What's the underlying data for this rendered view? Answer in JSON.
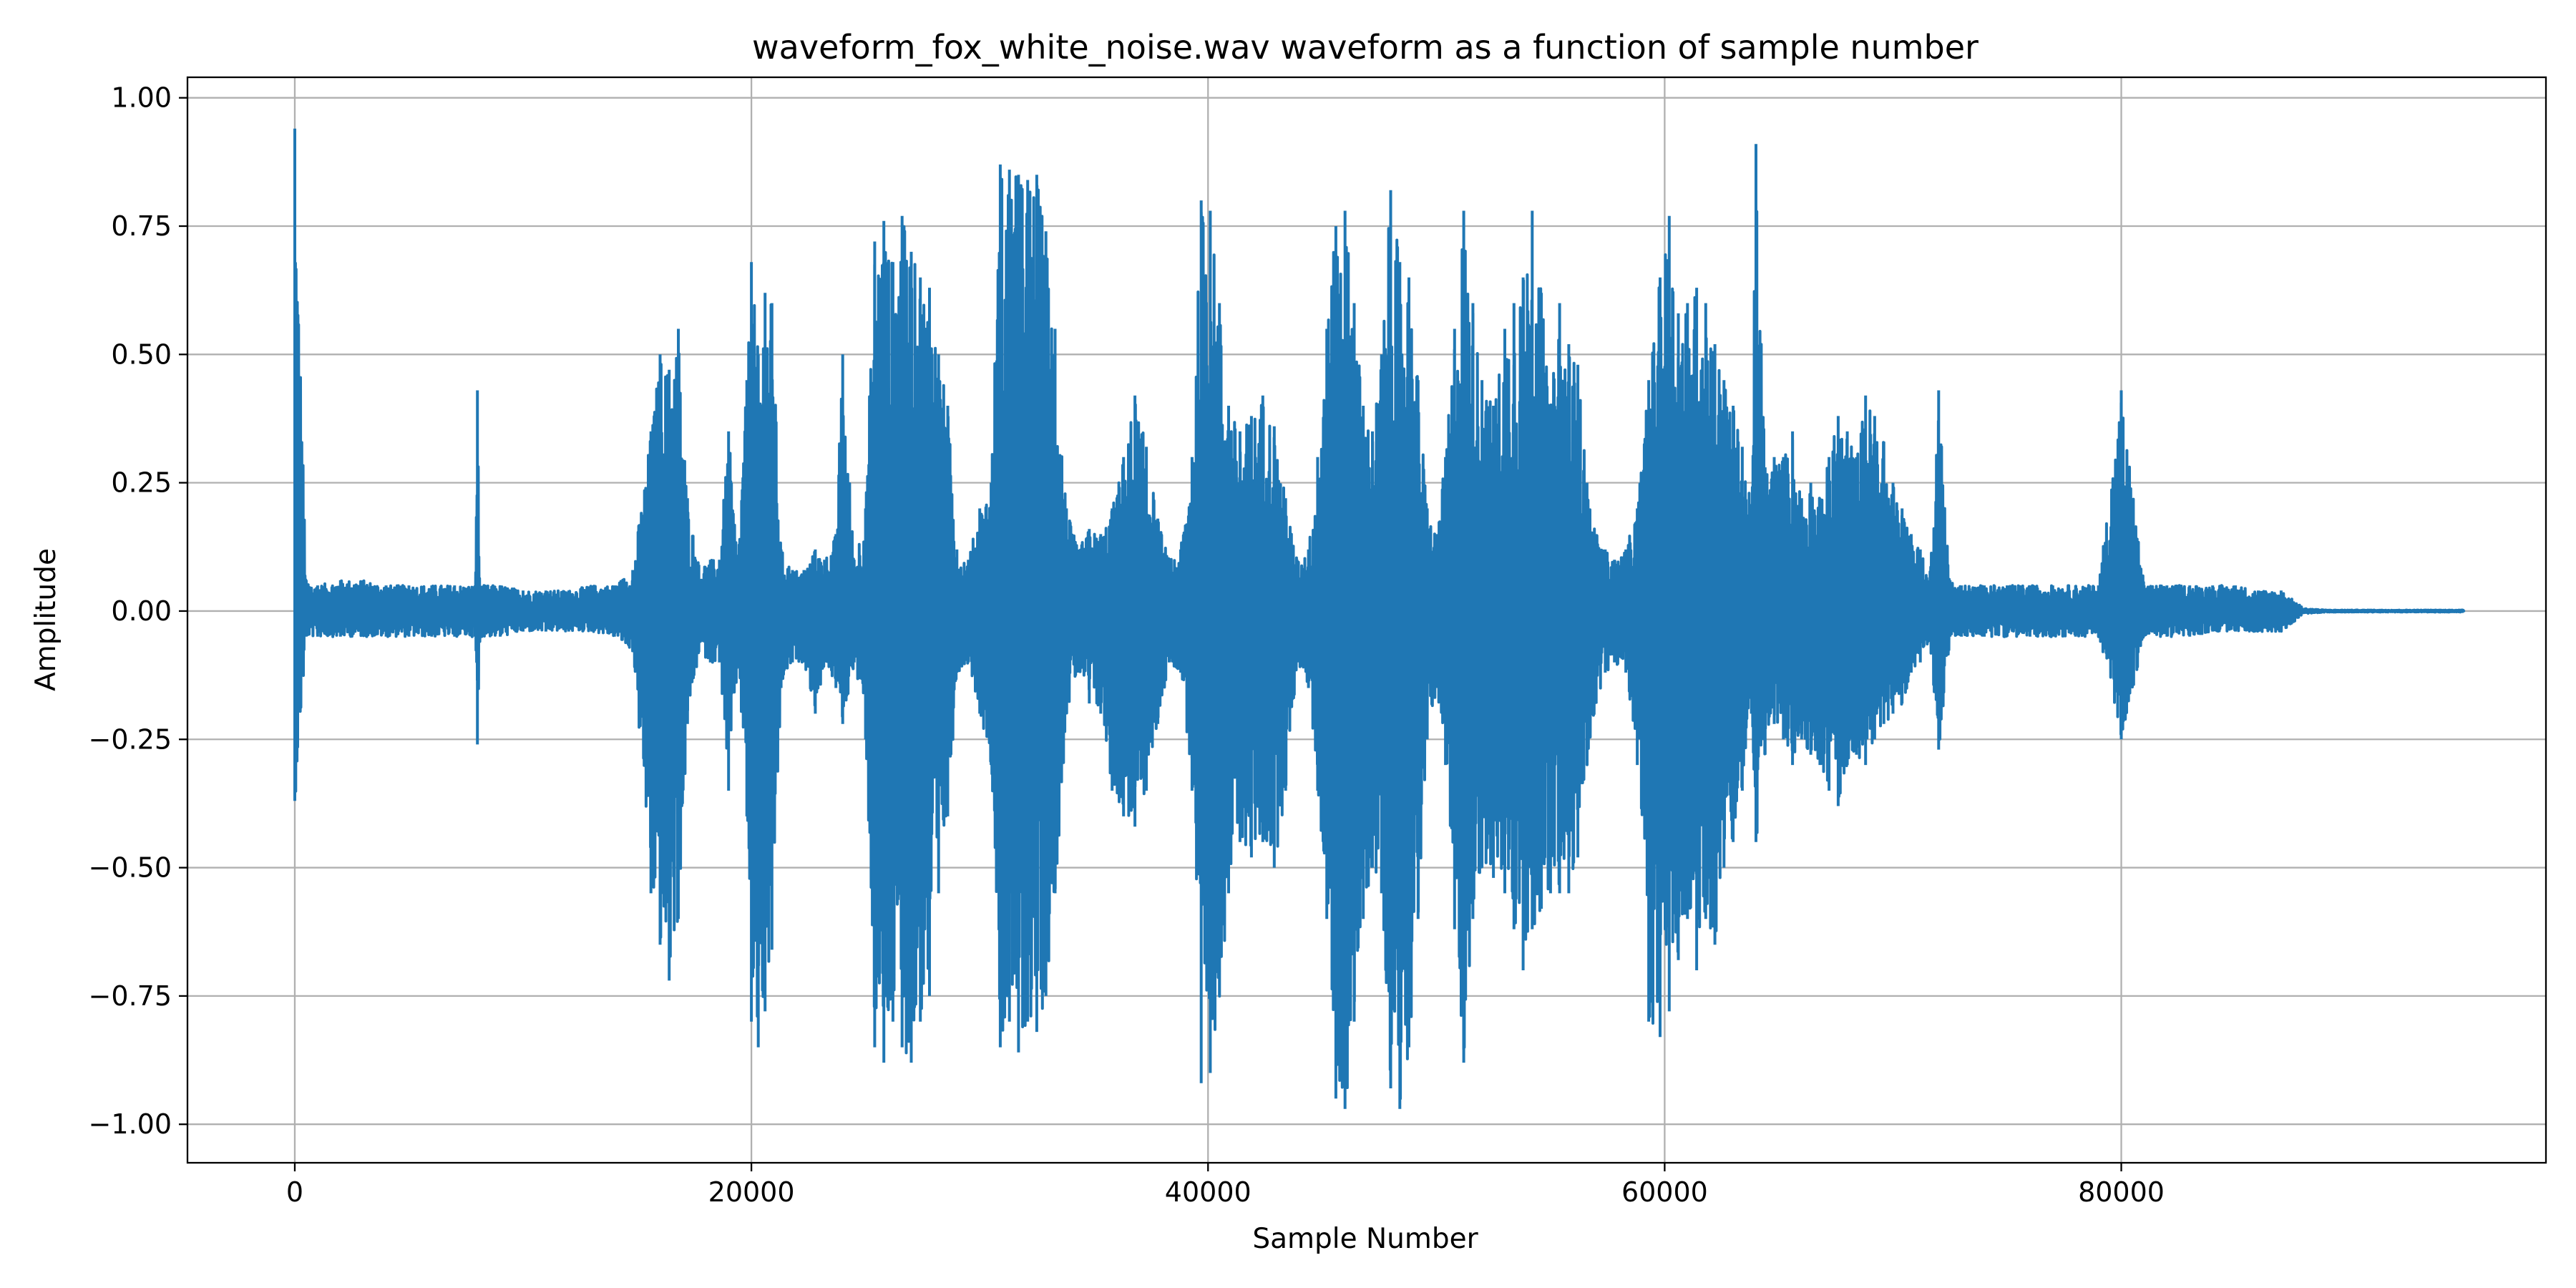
{
  "chart_data": {
    "type": "line",
    "title": "waveform_fox_white_noise.wav waveform as a function of sample number",
    "xlabel": "Sample Number",
    "ylabel": "Amplitude",
    "xlim": [
      -4700,
      98600
    ],
    "ylim": [
      -1.075,
      1.04
    ],
    "x_ticks": [
      0,
      20000,
      40000,
      60000,
      80000
    ],
    "x_tick_labels": [
      "0",
      "20000",
      "40000",
      "60000",
      "80000"
    ],
    "y_ticks": [
      1.0,
      0.75,
      0.5,
      0.25,
      0.0,
      -0.25,
      -0.5,
      -0.75,
      -1.0
    ],
    "y_tick_labels": [
      "1.00",
      "0.75",
      "0.50",
      "0.25",
      "0.00",
      "−0.25",
      "−0.50",
      "−0.75",
      "−1.00"
    ],
    "grid": true,
    "legend": "none",
    "line_color": "#1f77b4",
    "series": [
      {
        "x": [
          0,
          500,
          1000,
          2000,
          3000,
          4000,
          5000,
          6000,
          7000,
          7900,
          8000,
          8100,
          9000,
          10000,
          11000,
          12000,
          13000,
          14000,
          14800,
          15600,
          16000,
          16400,
          16800,
          17200,
          17700,
          18200,
          18600,
          19000,
          19400,
          19800,
          20000,
          20300,
          20600,
          20900,
          21300,
          21800,
          22300,
          22800,
          23200,
          23700,
          24000,
          24500,
          25000,
          25400,
          25800,
          26200,
          26600,
          27000,
          27400,
          27800,
          28200,
          28600,
          29000,
          29500,
          30000,
          30500,
          30900,
          31300,
          31700,
          32100,
          32500,
          32900,
          33300,
          33800,
          34300,
          34800,
          35300,
          35800,
          36300,
          36800,
          37300,
          37800,
          38300,
          38800,
          39300,
          39700,
          40100,
          40500,
          40900,
          41400,
          41900,
          42400,
          42900,
          43400,
          43900,
          44400,
          44800,
          45200,
          45600,
          46000,
          46400,
          46800,
          47200,
          47600,
          48000,
          48400,
          48800,
          49200,
          49600,
          50000,
          50400,
          50800,
          51200,
          51600,
          52000,
          52500,
          53000,
          53400,
          53800,
          54200,
          54600,
          55000,
          55400,
          55800,
          56200,
          56600,
          57000,
          57400,
          57800,
          58300,
          58800,
          59300,
          59800,
          60200,
          60600,
          61000,
          61400,
          61800,
          62200,
          62600,
          63000,
          63400,
          63800,
          64000,
          64400,
          64800,
          65200,
          65600,
          66000,
          66400,
          66800,
          67200,
          67600,
          68000,
          68400,
          68800,
          69200,
          69600,
          70000,
          70400,
          70800,
          71200,
          71600,
          72000,
          72500,
          73000,
          74000,
          75000,
          76000,
          77000,
          78000,
          79000,
          80000,
          81000,
          82000,
          83000,
          84000,
          85000,
          86000,
          87000,
          88000,
          89000,
          90000,
          91000,
          92000,
          93000,
          94000,
          95000
        ],
        "max": [
          0.94,
          0.06,
          0.05,
          0.06,
          0.06,
          0.05,
          0.05,
          0.05,
          0.05,
          0.05,
          0.43,
          0.05,
          0.05,
          0.04,
          0.04,
          0.04,
          0.05,
          0.05,
          0.08,
          0.35,
          0.5,
          0.47,
          0.55,
          0.22,
          0.09,
          0.1,
          0.1,
          0.35,
          0.1,
          0.45,
          0.68,
          0.5,
          0.62,
          0.6,
          0.12,
          0.08,
          0.08,
          0.12,
          0.1,
          0.15,
          0.5,
          0.1,
          0.2,
          0.72,
          0.76,
          0.68,
          0.77,
          0.7,
          0.65,
          0.63,
          0.5,
          0.4,
          0.12,
          0.1,
          0.2,
          0.25,
          0.87,
          0.86,
          0.85,
          0.84,
          0.85,
          0.74,
          0.55,
          0.2,
          0.12,
          0.16,
          0.15,
          0.2,
          0.3,
          0.42,
          0.32,
          0.18,
          0.1,
          0.12,
          0.3,
          0.8,
          0.78,
          0.6,
          0.4,
          0.35,
          0.38,
          0.42,
          0.36,
          0.22,
          0.1,
          0.12,
          0.3,
          0.55,
          0.75,
          0.78,
          0.6,
          0.4,
          0.35,
          0.5,
          0.82,
          0.68,
          0.65,
          0.45,
          0.2,
          0.15,
          0.3,
          0.55,
          0.78,
          0.6,
          0.45,
          0.4,
          0.55,
          0.6,
          0.65,
          0.78,
          0.62,
          0.4,
          0.6,
          0.52,
          0.48,
          0.25,
          0.15,
          0.12,
          0.1,
          0.12,
          0.2,
          0.45,
          0.65,
          0.77,
          0.58,
          0.6,
          0.63,
          0.6,
          0.52,
          0.45,
          0.4,
          0.32,
          0.2,
          0.91,
          0.28,
          0.3,
          0.3,
          0.35,
          0.22,
          0.25,
          0.22,
          0.3,
          0.38,
          0.35,
          0.3,
          0.42,
          0.38,
          0.33,
          0.25,
          0.2,
          0.15,
          0.12,
          0.06,
          0.43,
          0.06,
          0.05,
          0.05,
          0.05,
          0.05,
          0.05,
          0.05,
          0.05,
          0.43,
          0.05,
          0.05,
          0.05,
          0.05,
          0.05,
          0.04,
          0.04,
          0.005,
          0.002,
          0.002,
          0.002,
          0.002,
          0.002,
          0.002,
          0.002
        ],
        "min": [
          -0.37,
          -0.05,
          -0.05,
          -0.05,
          -0.05,
          -0.05,
          -0.05,
          -0.05,
          -0.05,
          -0.05,
          -0.26,
          -0.05,
          -0.05,
          -0.04,
          -0.04,
          -0.04,
          -0.04,
          -0.05,
          -0.08,
          -0.55,
          -0.65,
          -0.72,
          -0.6,
          -0.22,
          -0.08,
          -0.1,
          -0.1,
          -0.35,
          -0.1,
          -0.4,
          -0.8,
          -0.85,
          -0.78,
          -0.66,
          -0.15,
          -0.1,
          -0.1,
          -0.2,
          -0.1,
          -0.15,
          -0.22,
          -0.1,
          -0.25,
          -0.85,
          -0.88,
          -0.8,
          -0.85,
          -0.88,
          -0.8,
          -0.75,
          -0.55,
          -0.4,
          -0.12,
          -0.1,
          -0.2,
          -0.3,
          -0.85,
          -0.8,
          -0.86,
          -0.8,
          -0.82,
          -0.75,
          -0.55,
          -0.2,
          -0.12,
          -0.18,
          -0.2,
          -0.35,
          -0.4,
          -0.42,
          -0.35,
          -0.22,
          -0.1,
          -0.12,
          -0.35,
          -0.92,
          -0.9,
          -0.75,
          -0.55,
          -0.45,
          -0.48,
          -0.45,
          -0.5,
          -0.35,
          -0.1,
          -0.15,
          -0.35,
          -0.6,
          -0.95,
          -0.97,
          -0.8,
          -0.6,
          -0.5,
          -0.55,
          -0.93,
          -0.97,
          -0.85,
          -0.6,
          -0.25,
          -0.15,
          -0.3,
          -0.62,
          -0.88,
          -0.6,
          -0.5,
          -0.52,
          -0.55,
          -0.62,
          -0.7,
          -0.62,
          -0.58,
          -0.55,
          -0.55,
          -0.55,
          -0.48,
          -0.3,
          -0.18,
          -0.12,
          -0.1,
          -0.12,
          -0.3,
          -0.8,
          -0.83,
          -0.78,
          -0.68,
          -0.6,
          -0.7,
          -0.6,
          -0.65,
          -0.5,
          -0.45,
          -0.35,
          -0.2,
          -0.45,
          -0.28,
          -0.22,
          -0.25,
          -0.3,
          -0.25,
          -0.28,
          -0.3,
          -0.35,
          -0.38,
          -0.3,
          -0.28,
          -0.3,
          -0.25,
          -0.22,
          -0.2,
          -0.18,
          -0.12,
          -0.1,
          -0.06,
          -0.27,
          -0.05,
          -0.05,
          -0.05,
          -0.05,
          -0.05,
          -0.05,
          -0.05,
          -0.05,
          -0.25,
          -0.05,
          -0.05,
          -0.05,
          -0.04,
          -0.04,
          -0.04,
          -0.04,
          -0.005,
          -0.002,
          -0.002,
          -0.002,
          -0.002,
          -0.002,
          -0.002,
          -0.002
        ]
      }
    ]
  }
}
